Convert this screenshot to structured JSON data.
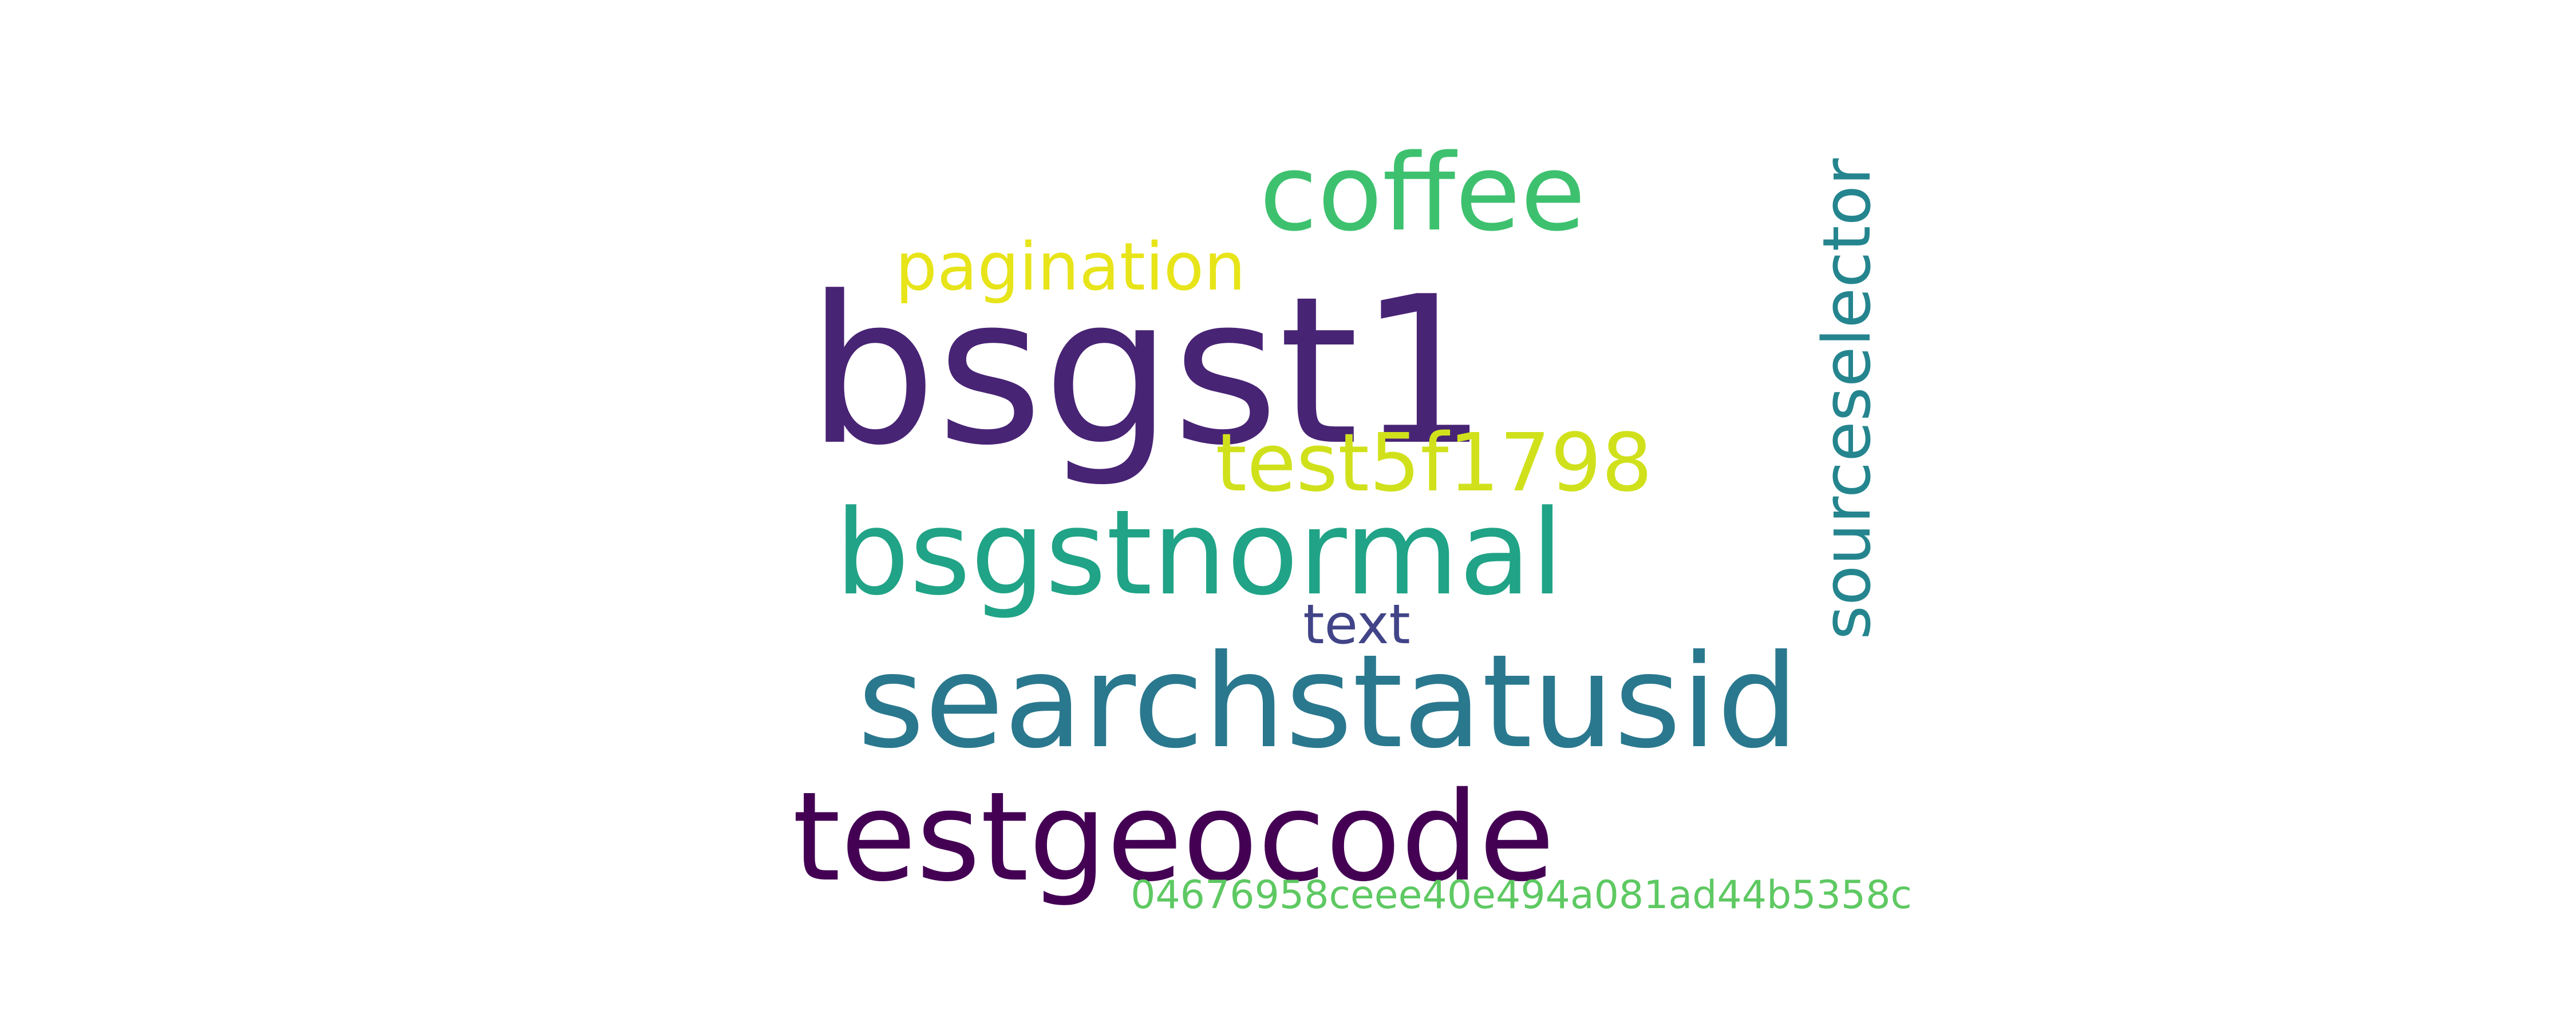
{
  "word_cloud": {
    "background": "#ffffff",
    "words": [
      {
        "id": "bsgst1",
        "text": "bsgst1",
        "color": "#482475"
      },
      {
        "id": "coffee",
        "text": "coffee",
        "color": "#3ec16f"
      },
      {
        "id": "pagination",
        "text": "pagination",
        "color": "#e7e419"
      },
      {
        "id": "test5f1798",
        "text": "test5f1798",
        "color": "#d0e11c"
      },
      {
        "id": "bsgstnormal",
        "text": "bsgstnormal",
        "color": "#20a386"
      },
      {
        "id": "text",
        "text": "text",
        "color": "#414487"
      },
      {
        "id": "searchstatusid",
        "text": "searchstatusid",
        "color": "#2a788e"
      },
      {
        "id": "testgeocode",
        "text": "testgeocode",
        "color": "#440154"
      },
      {
        "id": "hash",
        "text": "04676958ceee40e494a081ad44b5358c",
        "color": "#5ec962"
      },
      {
        "id": "sourceselector",
        "text": "sourceselector",
        "color": "#25858e",
        "orientation": "vertical"
      }
    ]
  }
}
